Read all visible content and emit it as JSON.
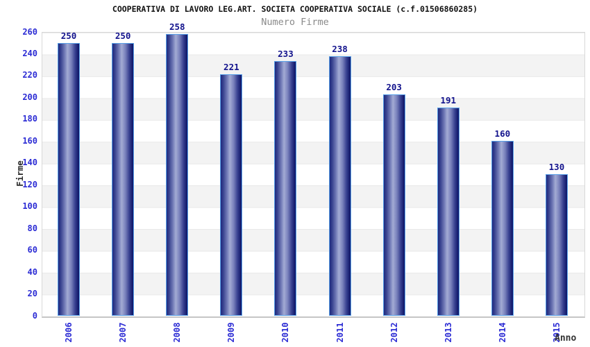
{
  "header": {
    "title": "COOPERATIVA DI LAVORO LEG.ART. SOCIETA COOPERATIVA SOCIALE (c.f.01506860285)",
    "subtitle": "Numero Firme"
  },
  "chart_data": {
    "type": "bar",
    "title": "COOPERATIVA DI LAVORO LEG.ART. SOCIETA COOPERATIVA SOCIALE (c.f.01506860285)",
    "subtitle": "Numero Firme",
    "categories": [
      "2006",
      "2007",
      "2008",
      "2009",
      "2010",
      "2011",
      "2012",
      "2013",
      "2014",
      "2015"
    ],
    "values": [
      250,
      250,
      258,
      221,
      233,
      238,
      203,
      191,
      160,
      130
    ],
    "xlabel": "Anno",
    "ylabel": "Firme",
    "ylim": [
      0,
      260
    ],
    "ytick_step": 20,
    "yticks": [
      0,
      20,
      40,
      60,
      80,
      100,
      120,
      140,
      160,
      180,
      200,
      220,
      240,
      260
    ],
    "grid": "alternating horizontal bands every 20 units",
    "legend_position": "none",
    "bar_value_labels_shown": true,
    "x_tick_rotation_deg": 90
  },
  "colors": {
    "axis_tick_label_blue": "#2b2bd4",
    "bar_value_label_navy": "#12128c",
    "bar_border_light_blue": "#58a0e8",
    "bar_gradient_dark": "#1e2a80",
    "bar_gradient_light": "#a3abd4",
    "bar_gradient_darkest": "#10186a",
    "band_gray": "#f3f3f3",
    "band_white": "#ffffff",
    "plot_border_gray": "#d8d8d8",
    "title_black": "#111111",
    "subtitle_gray": "#8a8a8a",
    "axis_title_dark": "#2b2b2b"
  }
}
